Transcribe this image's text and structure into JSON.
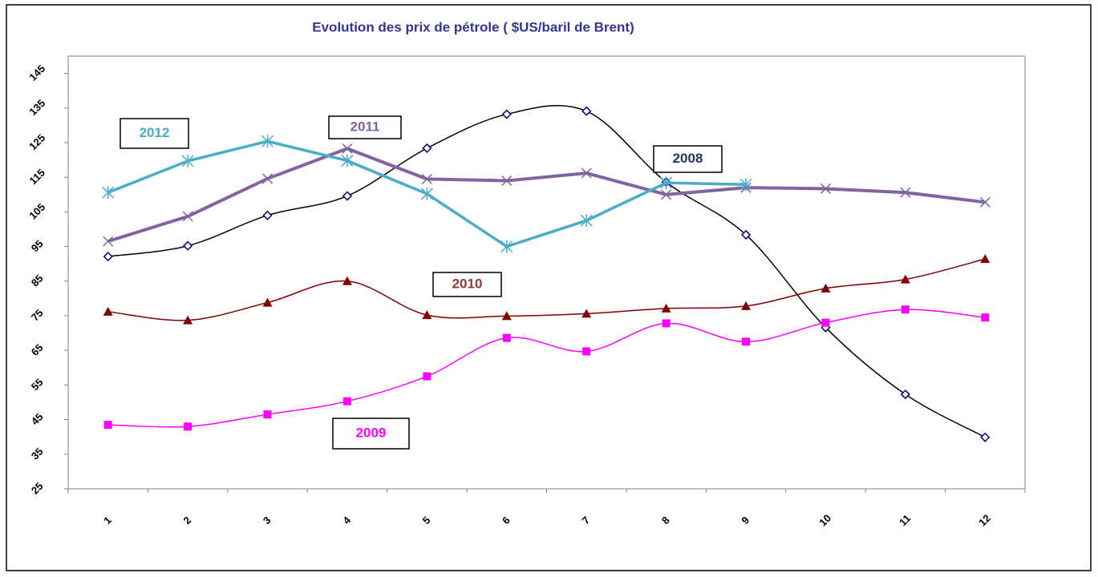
{
  "chart_data": {
    "type": "line",
    "title": "Evolution des prix de pétrole ( $US/baril de Brent)",
    "categories": [
      "1",
      "2",
      "3",
      "4",
      "5",
      "6",
      "7",
      "8",
      "9",
      "10",
      "11",
      "12"
    ],
    "ylim": [
      25,
      150
    ],
    "yticks": [
      25,
      35,
      45,
      55,
      65,
      75,
      85,
      95,
      105,
      115,
      125,
      135,
      145
    ],
    "grid": false,
    "series": [
      {
        "name": "2008",
        "color": "#000000",
        "marker": "diamond",
        "marker_color": "#000080",
        "smooth": true,
        "values": [
          92.1,
          95.2,
          104,
          109.6,
          123.4,
          133.2,
          134.1,
          113.6,
          98.4,
          71.6,
          52.3,
          39.9
        ]
      },
      {
        "name": "2009",
        "color": "#ff00ff",
        "marker": "square",
        "marker_color": "#ff00ff",
        "smooth": true,
        "values": [
          43.5,
          43,
          46.5,
          50.3,
          57.5,
          68.6,
          64.7,
          72.8,
          67.5,
          73,
          76.8,
          74.5
        ]
      },
      {
        "name": "2010",
        "color": "#800000",
        "marker": "triangle",
        "marker_color": "#800000",
        "smooth": true,
        "values": [
          76.2,
          73.7,
          78.8,
          85,
          75.2,
          74.9,
          75.6,
          77.1,
          77.8,
          82.9,
          85.5,
          91.4
        ]
      },
      {
        "name": "2011",
        "color": "#8064a2",
        "marker": "x",
        "marker_color": "#8064a2",
        "smooth": false,
        "values": [
          96.5,
          103.7,
          114.6,
          123.3,
          114.5,
          114,
          116.2,
          110,
          112,
          111.7,
          110.6,
          107.8
        ]
      },
      {
        "name": "2012",
        "color": "#4bacc6",
        "marker": "star",
        "marker_color": "#4bacc6",
        "smooth": false,
        "values": [
          110.6,
          119.7,
          125.4,
          119.8,
          110.2,
          95,
          102.5,
          113.4,
          112.9,
          null,
          null,
          null
        ]
      }
    ]
  }
}
